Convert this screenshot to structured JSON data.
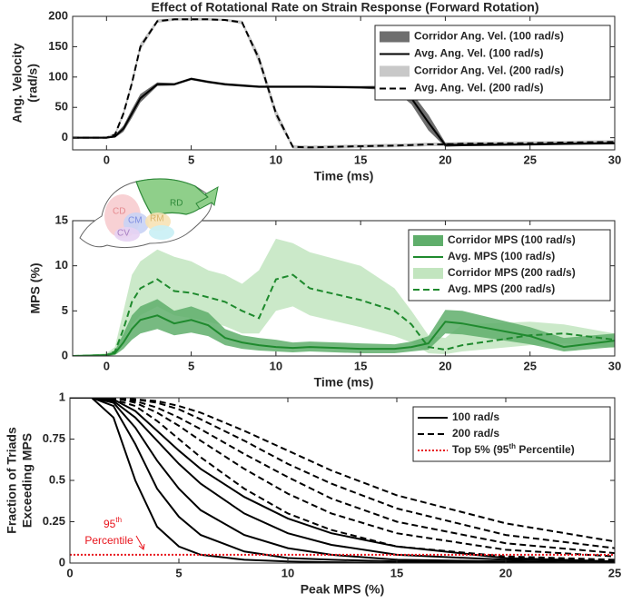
{
  "chart_data": [
    {
      "type": "line",
      "title": "Effect of Rotational Rate on Strain Response (Forward Rotation)",
      "xlabel": "Time (ms)",
      "ylabel": [
        "Ang. Velocity",
        "(rad/s)"
      ],
      "xlim": [
        -2,
        30
      ],
      "ylim": [
        -20,
        200
      ],
      "xticks": [
        0,
        5,
        10,
        15,
        20,
        25,
        30
      ],
      "yticks": [
        0,
        50,
        100,
        150,
        200
      ],
      "legend": "upper right",
      "x": [
        -2,
        0,
        0.5,
        1,
        1.5,
        2,
        3,
        4,
        5,
        6,
        7,
        8,
        9,
        10,
        11,
        12,
        15,
        17,
        18,
        19,
        20,
        21,
        25,
        27,
        30
      ],
      "series": [
        {
          "name": "Corridor Ang. Vel. (100 rad/s)",
          "color": "#6e6e6e",
          "lower": [
            -1,
            -1,
            0,
            10,
            33,
            58,
            85,
            86,
            95,
            90,
            86,
            84,
            82,
            82,
            82,
            82,
            81,
            78,
            55,
            12,
            -15,
            -14,
            -13,
            -12,
            -11
          ],
          "upper": [
            1,
            1,
            5,
            20,
            47,
            72,
            91,
            90,
            99,
            94,
            90,
            88,
            86,
            86,
            86,
            86,
            85,
            86,
            75,
            38,
            -8,
            -10,
            -9,
            -8,
            -7
          ]
        },
        {
          "name": "Avg. Ang. Vel. (100 rad/s)",
          "color": "#000000",
          "linestyle": "solid",
          "values": [
            0,
            0,
            2,
            15,
            40,
            65,
            88,
            88,
            97,
            92,
            88,
            86,
            84,
            84,
            84,
            84,
            83,
            82,
            65,
            25,
            -12,
            -12,
            -11,
            -10,
            -9
          ]
        },
        {
          "name": "Corridor Ang. Vel. (200 rad/s)",
          "color": "#c8c8c8",
          "lower": [
            -2,
            -2,
            2,
            35,
            84,
            144,
            189,
            193,
            193,
            193,
            192,
            187,
            122,
            32,
            -18,
            -19,
            -17,
            -16,
            -15,
            -14,
            -14,
            -13,
            -12,
            -11,
            -10
          ],
          "upper": [
            2,
            2,
            8,
            45,
            96,
            156,
            195,
            197,
            197,
            197,
            196,
            193,
            138,
            48,
            -12,
            -13,
            -11,
            -10,
            -9,
            -8,
            -8,
            -7,
            -6,
            -5,
            -4
          ]
        },
        {
          "name": "Avg. Ang. Vel. (200 rad/s)",
          "color": "#000000",
          "linestyle": "dashed",
          "values": [
            0,
            0,
            5,
            40,
            90,
            150,
            192,
            195,
            195,
            195,
            194,
            190,
            130,
            40,
            -15,
            -16,
            -14,
            -13,
            -12,
            -11,
            -11,
            -10,
            -9,
            -8,
            -7
          ]
        }
      ]
    },
    {
      "type": "line",
      "xlabel": "Time (ms)",
      "ylabel": [
        "MPS (%)"
      ],
      "xlim": [
        -2,
        30
      ],
      "ylim": [
        0,
        15
      ],
      "xticks": [
        0,
        5,
        10,
        15,
        20,
        25,
        30
      ],
      "yticks": [
        0,
        5,
        10,
        15
      ],
      "legend": "upper right",
      "inset_labels": [
        "RD",
        "CD",
        "CM",
        "RM",
        "CV"
      ],
      "x": [
        -2,
        0,
        0.5,
        1,
        1.5,
        2,
        3,
        4,
        5,
        6,
        7,
        8,
        9,
        10,
        11,
        12,
        15,
        17,
        18,
        19,
        20,
        21,
        25,
        27,
        30
      ],
      "series": [
        {
          "name": "Corridor MPS (100 rad/s)",
          "color": "#5fae6b",
          "lower": [
            0,
            0,
            0.1,
            0.8,
            1.8,
            2.5,
            3,
            2.3,
            2.6,
            2.2,
            1.2,
            0.8,
            0.6,
            0.5,
            0.4,
            0.5,
            0.3,
            0.3,
            0.5,
            0.7,
            2.5,
            2.4,
            1.3,
            0.5,
            1
          ],
          "upper": [
            0,
            0.2,
            0.6,
            2.5,
            4.5,
            5.5,
            6.3,
            5,
            5.5,
            4.8,
            3,
            2.3,
            2,
            1.8,
            1.5,
            1.6,
            1.4,
            1.3,
            1.6,
            2.2,
            5.1,
            5,
            3.2,
            2,
            2.5
          ]
        },
        {
          "name": "Avg. MPS (100 rad/s)",
          "color": "#1f8a2e",
          "linestyle": "solid",
          "values": [
            0,
            0.1,
            0.3,
            1.5,
            3,
            4,
            4.5,
            3.6,
            4,
            3.4,
            2,
            1.5,
            1.2,
            1,
            0.9,
            1,
            0.8,
            0.8,
            1,
            1.4,
            3.8,
            3.6,
            2.2,
            1,
            1.7
          ]
        },
        {
          "name": "Corridor MPS (200 rad/s)",
          "color": "#c2e5bf",
          "lower": [
            0,
            0,
            0.2,
            1.5,
            3.5,
            4.5,
            5.5,
            4.5,
            4.2,
            3.8,
            3.3,
            2.5,
            2.5,
            5,
            5.5,
            4.5,
            3.2,
            2.2,
            1.5,
            0.3,
            0.2,
            0.5,
            1.2,
            1.4,
            0.9
          ],
          "upper": [
            0,
            0.3,
            1,
            5,
            9,
            10.5,
            11.8,
            11,
            10.5,
            9.5,
            9,
            8,
            9.5,
            13,
            12.5,
            11.5,
            10,
            7.5,
            5,
            2.3,
            2,
            3.5,
            3.8,
            3.5,
            2.5
          ]
        },
        {
          "name": "Avg. MPS (200 rad/s)",
          "color": "#1f8a2e",
          "linestyle": "dashed",
          "values": [
            0,
            0.1,
            0.5,
            3,
            6,
            7.5,
            8.5,
            7.2,
            7,
            6.5,
            6,
            5,
            4.2,
            8.5,
            9,
            7.5,
            6.2,
            5,
            3.5,
            1,
            0.7,
            1.2,
            2.3,
            2.5,
            1.8
          ]
        }
      ]
    },
    {
      "type": "line",
      "xlabel": "Peak MPS (%)",
      "ylabel": [
        "Fraction of Triads",
        "Exceeding MPS"
      ],
      "xlim": [
        0,
        25
      ],
      "ylim": [
        0,
        1
      ],
      "xticks": [
        0,
        5,
        10,
        15,
        20,
        25
      ],
      "yticks": [
        0,
        0.25,
        0.5,
        0.75,
        1
      ],
      "legend": "upper right",
      "annotation": [
        "95",
        "th",
        "Percentile"
      ],
      "x": [
        0,
        1,
        2,
        3,
        4,
        5,
        6,
        8,
        10,
        12,
        15,
        20,
        25
      ],
      "series": [
        {
          "name": "100 rad/s",
          "color": "#000000",
          "linestyle": "solid",
          "curves": [
            [
              1,
              1,
              0.88,
              0.5,
              0.22,
              0.1,
              0.05,
              0.02,
              0.01,
              0.005,
              0,
              0,
              0
            ],
            [
              1,
              1,
              0.95,
              0.72,
              0.45,
              0.28,
              0.17,
              0.07,
              0.03,
              0.02,
              0.01,
              0,
              0
            ],
            [
              1,
              1,
              0.97,
              0.82,
              0.62,
              0.45,
              0.32,
              0.17,
              0.09,
              0.05,
              0.02,
              0.01,
              0
            ],
            [
              1,
              1,
              0.98,
              0.88,
              0.74,
              0.6,
              0.48,
              0.3,
              0.18,
              0.11,
              0.05,
              0.02,
              0.01
            ],
            [
              1,
              1,
              0.99,
              0.92,
              0.8,
              0.68,
              0.57,
              0.4,
              0.27,
              0.18,
              0.1,
              0.03,
              0.01
            ]
          ]
        },
        {
          "name": "200 rad/s",
          "color": "#000000",
          "linestyle": "dashed",
          "curves": [
            [
              1,
              1,
              0.99,
              0.95,
              0.86,
              0.75,
              0.64,
              0.45,
              0.3,
              0.2,
              0.1,
              0.04,
              0.02
            ],
            [
              1,
              1,
              1,
              0.97,
              0.91,
              0.83,
              0.74,
              0.57,
              0.42,
              0.3,
              0.18,
              0.08,
              0.04
            ],
            [
              1,
              1,
              1,
              0.98,
              0.94,
              0.88,
              0.81,
              0.66,
              0.52,
              0.39,
              0.25,
              0.12,
              0.06
            ],
            [
              1,
              1,
              1,
              0.99,
              0.97,
              0.93,
              0.87,
              0.74,
              0.6,
              0.48,
              0.33,
              0.17,
              0.09
            ],
            [
              1,
              1,
              1,
              0.99,
              0.98,
              0.95,
              0.91,
              0.8,
              0.68,
              0.56,
              0.41,
              0.24,
              0.13
            ]
          ]
        },
        {
          "name": [
            "Top 5% (95",
            "th",
            " Percentile)"
          ],
          "color": "#e8141c",
          "linestyle": "dotted",
          "value": 0.05
        }
      ]
    }
  ]
}
